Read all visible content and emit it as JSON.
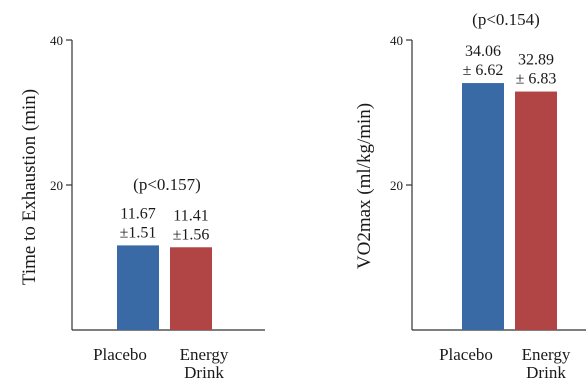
{
  "chart_data": [
    {
      "type": "bar",
      "ylabel": "Time to Exhaustion (min)",
      "ylim": [
        0,
        40
      ],
      "yticks": [
        "20",
        "40"
      ],
      "categories": [
        "Placebo",
        "Energy Drink"
      ],
      "category_lines": [
        [
          "Placebo"
        ],
        [
          "Energy",
          "Drink"
        ]
      ],
      "values": [
        11.67,
        11.41
      ],
      "value_labels": [
        [
          "11.67",
          "±1.51"
        ],
        [
          "11.41",
          "±1.56"
        ]
      ],
      "annotation": "(p<0.157)",
      "colors": [
        "#3a6aa5",
        "#b14545"
      ],
      "grid": false
    },
    {
      "type": "bar",
      "ylabel": "VO2max (ml/kg/min)",
      "ylim": [
        0,
        40
      ],
      "yticks": [
        "20",
        "40"
      ],
      "categories": [
        "Placebo",
        "Energy Drink"
      ],
      "category_lines": [
        [
          "Placebo"
        ],
        [
          "Energy",
          "Drink"
        ]
      ],
      "values": [
        34.06,
        32.89
      ],
      "value_labels": [
        [
          "34.06",
          "± 6.62"
        ],
        [
          "32.89",
          "± 6.83"
        ]
      ],
      "annotation": "(p<0.154)",
      "colors": [
        "#3a6aa5",
        "#b14545"
      ],
      "grid": false
    }
  ]
}
